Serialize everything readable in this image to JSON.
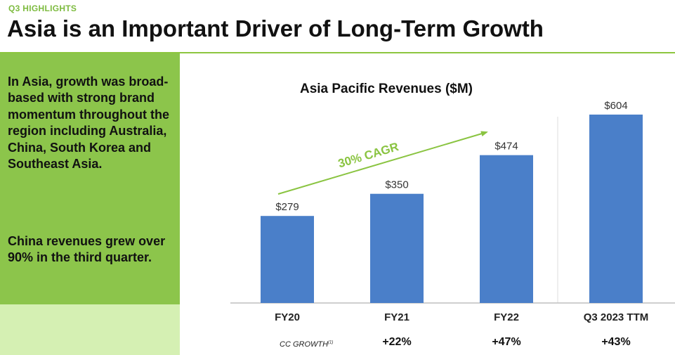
{
  "header": {
    "eyebrow": "Q3 HIGHLIGHTS",
    "title": "Asia is an Important Driver of Long-Term Growth"
  },
  "sidebar": {
    "paragraph1": "In Asia, growth was broad-based with strong brand momentum throughout the region including Australia, China, South Korea and Southeast Asia.",
    "paragraph2": "China revenues grew over 90% in the third quarter."
  },
  "colors": {
    "bar": "#4a7fc9",
    "accent_green": "#8dc63f",
    "sidebar_green": "#8cc54b",
    "sidebar_light": "#d5f0b3",
    "cagr_green": "#8ac441"
  },
  "chart_data": {
    "type": "bar",
    "title": "Asia Pacific Revenues ($M)",
    "categories": [
      "FY20",
      "FY21",
      "FY22",
      "Q3 2023 TTM"
    ],
    "values": [
      279,
      350,
      474,
      604
    ],
    "value_labels": [
      "$279",
      "$350",
      "$474",
      "$604"
    ],
    "xlabel": "",
    "ylabel": "",
    "ylim": [
      0,
      604
    ],
    "grid": false,
    "annotation": "30% CAGR",
    "growth_label": "CC GROWTH",
    "growth_footnote": "(1)",
    "growth": [
      "",
      "+22%",
      "+47%",
      "+43%"
    ]
  }
}
